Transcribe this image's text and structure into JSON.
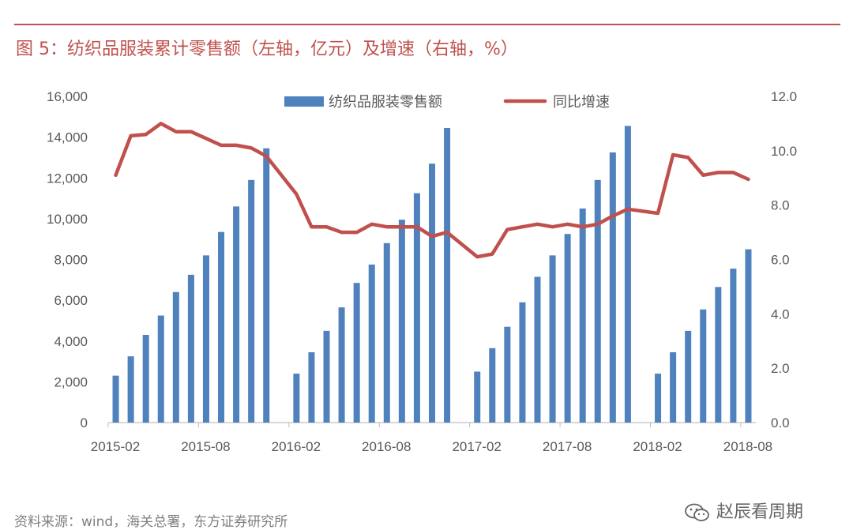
{
  "figure": {
    "title": "图 5：纺织品服装累计零售额（左轴，亿元）及增速（右轴，%）",
    "source": "资料来源：wind，海关总署，东方证券研究所",
    "watermark": "赵辰看周期",
    "accent_color": "#c0504d"
  },
  "chart_data": {
    "type": "bar+line",
    "title": "",
    "xlabel": "",
    "ylabel": "",
    "y2label": "",
    "x_tick_labels": [
      "2015-02",
      "2015-08",
      "2016-02",
      "2016-08",
      "2017-02",
      "2017-08",
      "2018-02",
      "2018-08"
    ],
    "x_tick_index": [
      0,
      6,
      12,
      18,
      24,
      30,
      36,
      42
    ],
    "y_left": {
      "min": 0,
      "max": 16000,
      "ticks": [
        0,
        2000,
        4000,
        6000,
        8000,
        10000,
        12000,
        14000,
        16000
      ],
      "tick_labels": [
        "0",
        "2,000",
        "4,000",
        "6,000",
        "8,000",
        "10,000",
        "12,000",
        "14,000",
        "16,000"
      ]
    },
    "y_right": {
      "min": 0,
      "max": 12,
      "ticks": [
        0,
        2,
        4,
        6,
        8,
        10,
        12
      ],
      "tick_labels": [
        "0.0",
        "2.0",
        "4.0",
        "6.0",
        "8.0",
        "10.0",
        "12.0"
      ]
    },
    "grid": false,
    "legend_position": "top-center",
    "periods": [
      "2015-02",
      "2015-03",
      "2015-04",
      "2015-05",
      "2015-06",
      "2015-07",
      "2015-08",
      "2015-09",
      "2015-10",
      "2015-11",
      "2015-12",
      "2016-01",
      "2016-02",
      "2016-03",
      "2016-04",
      "2016-05",
      "2016-06",
      "2016-07",
      "2016-08",
      "2016-09",
      "2016-10",
      "2016-11",
      "2016-12",
      "2017-01",
      "2017-02",
      "2017-03",
      "2017-04",
      "2017-05",
      "2017-06",
      "2017-07",
      "2017-08",
      "2017-09",
      "2017-10",
      "2017-11",
      "2017-12",
      "2018-01",
      "2018-02",
      "2018-03",
      "2018-04",
      "2018-05",
      "2018-06",
      "2018-07",
      "2018-08"
    ],
    "series": [
      {
        "name": "纺织品服装零售额",
        "type": "bar",
        "axis": "left",
        "color": "#4f81bd",
        "values": [
          2300,
          3250,
          4300,
          5250,
          6400,
          7250,
          8200,
          9350,
          10600,
          11900,
          13450,
          null,
          2400,
          3450,
          4500,
          5650,
          6850,
          7750,
          8800,
          9950,
          11250,
          12700,
          14450,
          null,
          2500,
          3650,
          4700,
          5900,
          7150,
          8200,
          9250,
          10500,
          11900,
          13250,
          14550,
          null,
          2400,
          3450,
          4500,
          5550,
          6650,
          7550,
          8500
        ]
      },
      {
        "name": "同比增速",
        "type": "line",
        "axis": "right",
        "color": "#c0504d",
        "values": [
          9.1,
          10.55,
          10.6,
          11.0,
          10.7,
          10.7,
          10.45,
          10.2,
          10.2,
          10.1,
          9.8,
          null,
          8.4,
          7.2,
          7.2,
          7.0,
          7.0,
          7.3,
          7.2,
          7.2,
          7.2,
          6.85,
          7.0,
          null,
          6.1,
          6.2,
          7.1,
          7.2,
          7.3,
          7.2,
          7.3,
          7.2,
          7.3,
          7.6,
          7.85,
          null,
          7.7,
          9.85,
          9.75,
          9.1,
          9.2,
          9.2,
          8.95
        ]
      }
    ]
  }
}
